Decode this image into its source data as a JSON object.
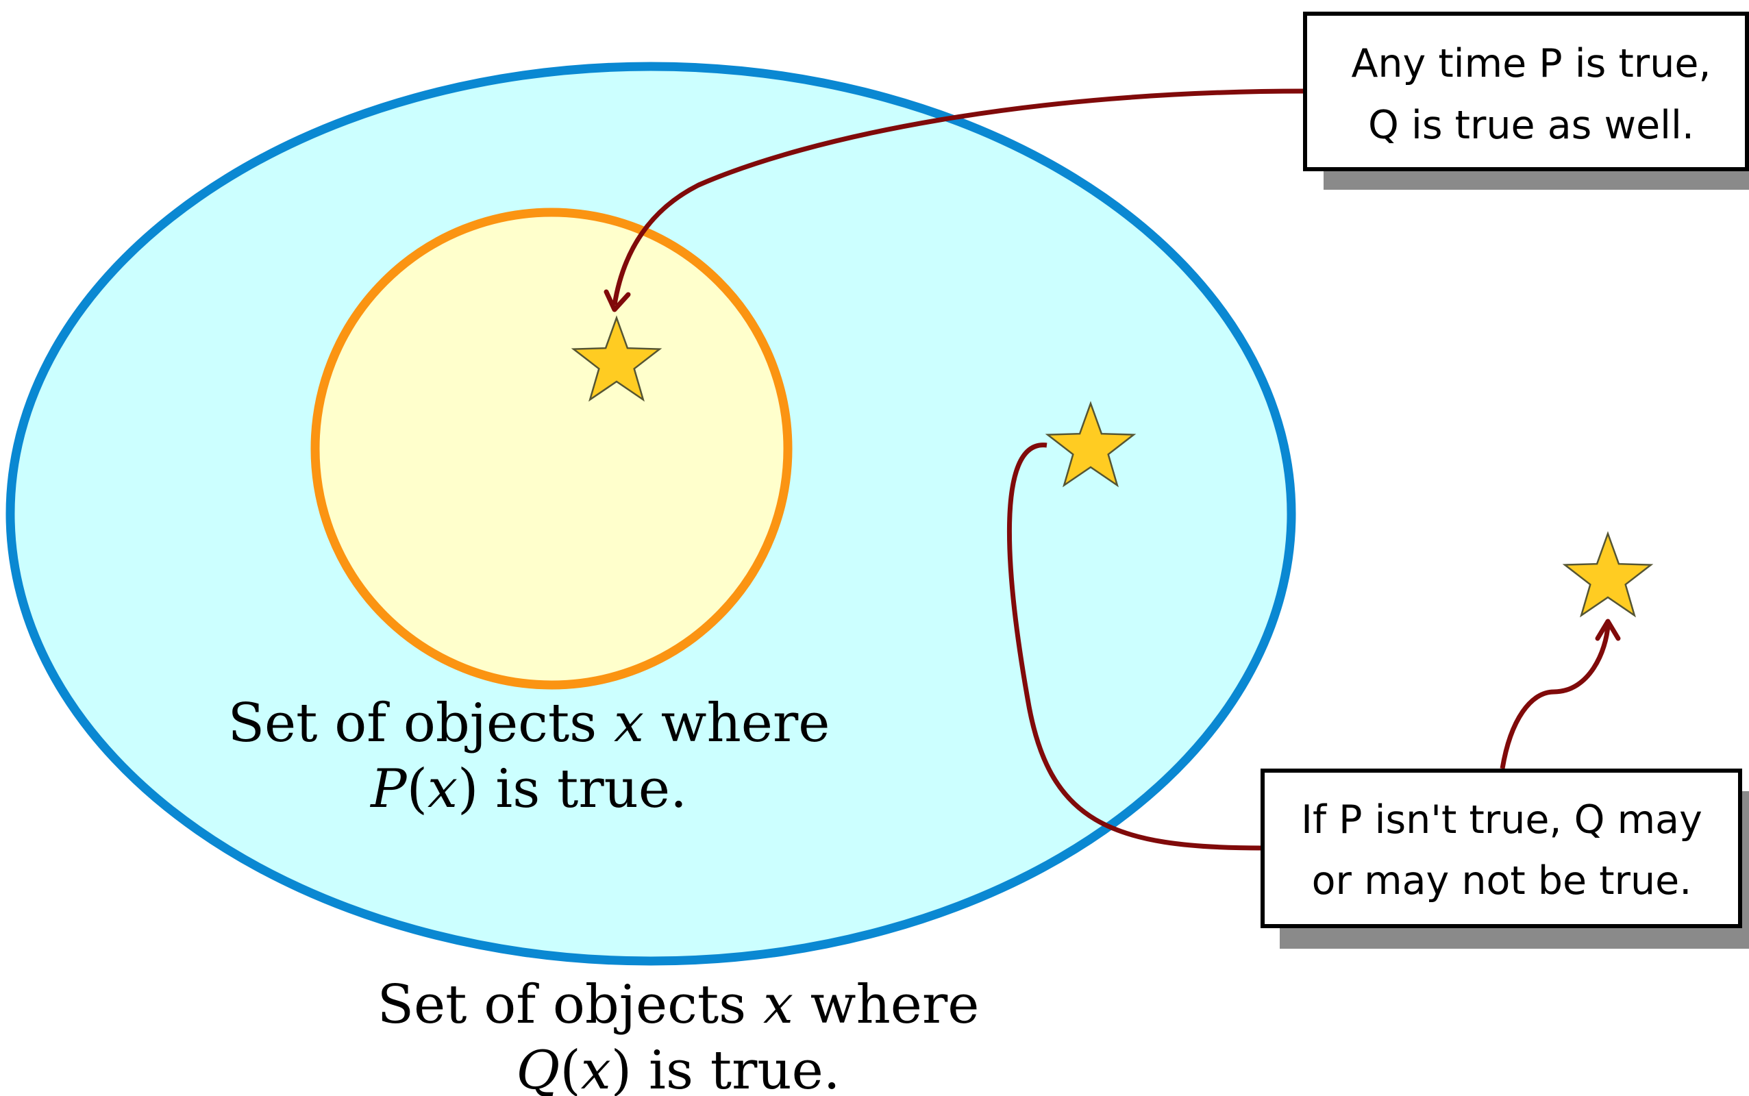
{
  "colors": {
    "outer_fill": "#ccffff",
    "outer_stroke": "#0a88d2",
    "inner_fill": "#ffffcc",
    "inner_stroke": "#fb9412",
    "star_fill": "#ffcc22",
    "star_stroke": "#555533",
    "arrow": "#800a0a",
    "callout_shadow": "#8a8a8a"
  },
  "inner_set_label": {
    "line1_prefix": "Set of objects ",
    "var": "x",
    "line1_suffix": " where",
    "line2_fn": "P",
    "line2_paren_open": "(",
    "line2_var": "x",
    "line2_rest": ") is true."
  },
  "outer_set_label": {
    "line1_prefix": "Set of objects ",
    "var": "x",
    "line1_suffix": " where",
    "line2_fn": "Q",
    "line2_paren_open": "(",
    "line2_var": "x",
    "line2_rest": ") is true."
  },
  "callouts": {
    "top": {
      "line1": "Any time P is true,",
      "line2": "Q is true as well."
    },
    "bottom": {
      "line1": "If P isn't true, Q may",
      "line2": "or may not be true."
    }
  }
}
